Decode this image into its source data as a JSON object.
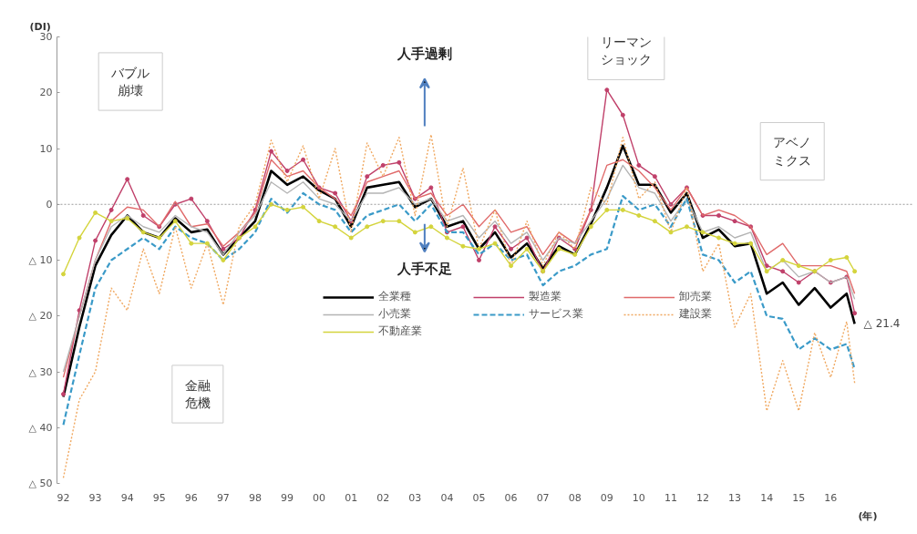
{
  "chart_data": {
    "type": "line",
    "ylabel": "(DI)",
    "xlabel": "(年)",
    "x": [
      1992.0,
      1992.5,
      1993.0,
      1993.5,
      1994.0,
      1994.5,
      1995.0,
      1995.5,
      1996.0,
      1996.5,
      1997.0,
      1997.5,
      1998.0,
      1998.5,
      1999.0,
      1999.5,
      2000.0,
      2000.5,
      2001.0,
      2001.5,
      2002.0,
      2002.5,
      2003.0,
      2003.5,
      2004.0,
      2004.5,
      2005.0,
      2005.5,
      2006.0,
      2006.5,
      2007.0,
      2007.5,
      2008.0,
      2008.5,
      2009.0,
      2009.5,
      2010.0,
      2010.5,
      2011.0,
      2011.5,
      2012.0,
      2012.5,
      2013.0,
      2013.5,
      2014.0,
      2014.5,
      2015.0,
      2015.5,
      2016.0,
      2016.5,
      2016.75
    ],
    "series": [
      {
        "name": "全業種",
        "color": "#000000",
        "line_style": "solid",
        "marker": "none",
        "values": [
          -34.5,
          -22,
          -11,
          -5.5,
          -2,
          -5,
          -6,
          -2.5,
          -5,
          -4.5,
          -9,
          -6,
          -3,
          6,
          3.5,
          5,
          2.5,
          1,
          -4,
          3,
          3.5,
          4,
          -0.5,
          1,
          -4,
          -3,
          -8,
          -5,
          -9.5,
          -7,
          -11.5,
          -7.5,
          -9,
          -3.5,
          3,
          10.5,
          3.5,
          3.5,
          -1.5,
          2,
          -6,
          -4.5,
          -7.5,
          -7,
          -16,
          -14,
          -18,
          -15,
          -18.5,
          -16,
          -21.4
        ]
      },
      {
        "name": "製造業",
        "color": "#c0406a",
        "line_style": "solid",
        "marker": "circle",
        "values": [
          -34,
          -19,
          -6.5,
          -1,
          4.5,
          -2,
          -4,
          0,
          1,
          -3,
          -8,
          -6,
          -1,
          9.5,
          6,
          8,
          3,
          2,
          -3,
          5,
          7,
          7.5,
          1,
          3,
          -5,
          -4,
          -10,
          -4,
          -8,
          -6,
          -12,
          -6,
          -8,
          -1,
          20.5,
          16,
          7,
          5,
          0,
          3,
          -2,
          -2,
          -3,
          -4,
          -11,
          -12,
          -14,
          -12,
          -14,
          -13,
          -19.5
        ]
      },
      {
        "name": "卸売業",
        "color": "#e06a6a",
        "line_style": "solid",
        "marker": "none",
        "values": [
          -31,
          -20,
          -10,
          -3,
          -0.5,
          -1,
          -4,
          0.5,
          -4,
          -3.5,
          -7.5,
          -5,
          -1.5,
          8,
          5,
          6,
          3,
          1,
          -2,
          4,
          5,
          6,
          1,
          2,
          -2,
          0,
          -4,
          -1,
          -5,
          -4,
          -9,
          -5,
          -7,
          -1,
          7,
          8,
          6,
          3,
          -1,
          3,
          -2,
          -1,
          -2,
          -4,
          -9,
          -7,
          -11,
          -11,
          -11,
          -12,
          -16
        ]
      },
      {
        "name": "小売業",
        "color": "#b4b4b4",
        "line_style": "solid",
        "marker": "none",
        "values": [
          -30,
          -20,
          -10,
          -4,
          -2,
          -4,
          -5,
          -2,
          -4,
          -5,
          -9,
          -5,
          -2,
          4,
          2,
          4,
          1,
          0,
          -3,
          2,
          2,
          3,
          0,
          1,
          -3,
          -2,
          -6,
          -3,
          -7,
          -5,
          -10,
          -6,
          -7,
          -3,
          1,
          7,
          3,
          2,
          -3,
          1,
          -5,
          -4,
          -6,
          -5,
          -12,
          -10,
          -13,
          -12,
          -14,
          -13,
          -17
        ]
      },
      {
        "name": "サービス業",
        "color": "#3a9ac8",
        "line_style": "dashed",
        "marker": "none",
        "values": [
          -39.5,
          -27,
          -15,
          -10,
          -8,
          -6,
          -8,
          -4,
          -6,
          -7,
          -10,
          -8,
          -5,
          1,
          -1.5,
          2,
          0,
          -1,
          -5,
          -2,
          -1,
          0,
          -3,
          0,
          -5,
          -5,
          -9,
          -7,
          -10,
          -9,
          -14.5,
          -12,
          -11,
          -9,
          -8,
          1.5,
          -1,
          0,
          -4,
          1,
          -9,
          -10,
          -14,
          -12,
          -20,
          -20.5,
          -26,
          -24,
          -26,
          -25,
          -29.5
        ]
      },
      {
        "name": "建設業",
        "color": "#f0a860",
        "line_style": "dotted",
        "marker": "none",
        "values": [
          -49,
          -35,
          -30,
          -15,
          -19,
          -8,
          -16,
          -4,
          -15,
          -7,
          -18,
          -4,
          0,
          11.5,
          4,
          10.5,
          1,
          10,
          -5,
          11,
          5,
          12,
          -2,
          12.5,
          -4,
          6.5,
          -8,
          -1,
          -11,
          -3,
          -11,
          -5,
          -8,
          3,
          0,
          12,
          1,
          4,
          -5,
          3,
          -12,
          -7,
          -22,
          -16,
          -37,
          -28,
          -37,
          -23,
          -31,
          -21,
          -32
        ]
      },
      {
        "name": "不動産業",
        "color": "#d4d43c",
        "line_style": "solid",
        "marker": "circle",
        "values": [
          -12.5,
          -6,
          -1.5,
          -3,
          -2.5,
          -5,
          -6,
          -3,
          -7,
          -7,
          -10,
          -6,
          -4,
          0,
          -1,
          -0.5,
          -3,
          -4,
          -6,
          -4,
          -3,
          -3,
          -5,
          -4,
          -6,
          -7.5,
          -8,
          -7,
          -11,
          -8,
          -12,
          -8,
          -9,
          -4,
          -1,
          -1,
          -2,
          -3,
          -5,
          -4,
          -5,
          -6,
          -7,
          -7,
          -12,
          -10,
          -11,
          -12,
          -10,
          -9.5,
          -12
        ]
      }
    ],
    "xlim": [
      1991.8,
      2018.6
    ],
    "xticks": [
      {
        "value": 1992,
        "label": "92"
      },
      {
        "value": 1993,
        "label": "93"
      },
      {
        "value": 1994,
        "label": "94"
      },
      {
        "value": 1995,
        "label": "95"
      },
      {
        "value": 1996,
        "label": "96"
      },
      {
        "value": 1997,
        "label": "97"
      },
      {
        "value": 1998,
        "label": "98"
      },
      {
        "value": 1999,
        "label": "99"
      },
      {
        "value": 2000,
        "label": "00"
      },
      {
        "value": 2001,
        "label": "01"
      },
      {
        "value": 2002,
        "label": "02"
      },
      {
        "value": 2003,
        "label": "03"
      },
      {
        "value": 2004,
        "label": "04"
      },
      {
        "value": 2005,
        "label": "05"
      },
      {
        "value": 2006,
        "label": "06"
      },
      {
        "value": 2007,
        "label": "07"
      },
      {
        "value": 2008,
        "label": "08"
      },
      {
        "value": 2009,
        "label": "09"
      },
      {
        "value": 2010,
        "label": "10"
      },
      {
        "value": 2011,
        "label": "11"
      },
      {
        "value": 2012,
        "label": "12"
      },
      {
        "value": 2013,
        "label": "13"
      },
      {
        "value": 2014,
        "label": "14"
      },
      {
        "value": 2015,
        "label": "15"
      },
      {
        "value": 2016,
        "label": "16"
      }
    ],
    "ylim": [
      -50,
      30
    ],
    "yticks": [
      30,
      20,
      10,
      0,
      {
        "value": -10,
        "label": "△ 10"
      },
      {
        "value": -20,
        "label": "△ 20"
      },
      {
        "value": -30,
        "label": "△ 30"
      },
      {
        "value": -40,
        "label": "△ 40"
      },
      {
        "value": -50,
        "label": "△ 50"
      }
    ],
    "ref_lines": [
      {
        "axis": "y",
        "value": 0,
        "color": "#9a9a9a",
        "line_style": "dotted"
      }
    ],
    "annotations": [
      "バブル崩壊",
      "金融危機",
      "リーマンショック",
      "アベノミクス",
      "人手過剰",
      "人手不足",
      {
        "text": "△ 21.4",
        "x": 2016.75,
        "y": -21.4
      }
    ],
    "grid": false,
    "legend": "bottom"
  }
}
